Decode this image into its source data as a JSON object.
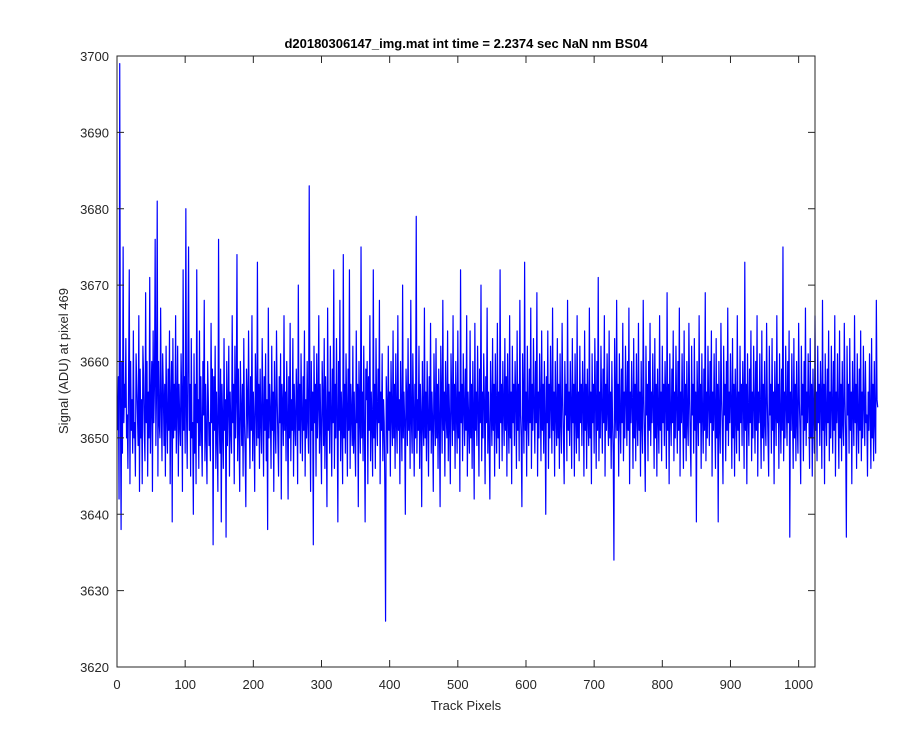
{
  "figure": {
    "title": "d20180306147_img.mat int time = 2.2374 sec  NaN nm BS04"
  },
  "chart_data": {
    "type": "line",
    "title": "d20180306147_img.mat int time = 2.2374 sec  NaN nm BS04",
    "xlabel": "Track Pixels",
    "ylabel": "Signal (ADU) at pixel 469",
    "xlim": [
      0,
      1024
    ],
    "ylim": [
      3620,
      3700
    ],
    "xticks": [
      0,
      100,
      200,
      300,
      400,
      500,
      600,
      700,
      800,
      900,
      1000
    ],
    "yticks": [
      3620,
      3630,
      3640,
      3650,
      3660,
      3670,
      3680,
      3690,
      3700
    ],
    "xtick_labels": [
      "0",
      "100",
      "200",
      "300",
      "400",
      "500",
      "600",
      "700",
      "800",
      "900",
      "1000"
    ],
    "ytick_labels": [
      "3620",
      "3630",
      "3640",
      "3650",
      "3660",
      "3670",
      "3680",
      "3690",
      "3700"
    ],
    "grid": false,
    "line_color": "#0000ff",
    "series": [
      {
        "x_start": 1,
        "x_step": 1,
        "y": [
          3651,
          3658,
          3642,
          3699,
          3655,
          3638,
          3660,
          3648,
          3675,
          3652,
          3657,
          3654,
          3663,
          3650,
          3653,
          3646,
          3658,
          3672,
          3644,
          3660,
          3651,
          3655,
          3648,
          3664,
          3650,
          3652,
          3645,
          3661,
          3657,
          3653,
          3649,
          3666,
          3643,
          3659,
          3650,
          3655,
          3644,
          3662,
          3658,
          3651,
          3647,
          3669,
          3652,
          3660,
          3645,
          3656,
          3650,
          3671,
          3648,
          3655,
          3660,
          3643,
          3664,
          3652,
          3657,
          3676,
          3649,
          3656,
          3681,
          3645,
          3660,
          3652,
          3650,
          3667,
          3654,
          3647,
          3661,
          3656,
          3649,
          3657,
          3645,
          3662,
          3653,
          3648,
          3659,
          3651,
          3664,
          3644,
          3655,
          3660,
          3639,
          3663,
          3650,
          3657,
          3651,
          3666,
          3648,
          3654,
          3662,
          3645,
          3657,
          3652,
          3649,
          3661,
          3655,
          3643,
          3672,
          3651,
          3658,
          3648,
          3680,
          3653,
          3646,
          3660,
          3675,
          3651,
          3657,
          3645,
          3663,
          3650,
          3652,
          3640,
          3661,
          3648,
          3657,
          3644,
          3672,
          3652,
          3655,
          3646,
          3664,
          3649,
          3658,
          3651,
          3645,
          3660,
          3653,
          3668,
          3647,
          3657,
          3650,
          3644,
          3660,
          3655,
          3649,
          3652,
          3647,
          3665,
          3652,
          3659,
          3636,
          3658,
          3651,
          3662,
          3646,
          3656,
          3650,
          3643,
          3676,
          3652,
          3648,
          3659,
          3639,
          3657,
          3652,
          3646,
          3663,
          3651,
          3655,
          3637,
          3660,
          3649,
          3654,
          3662,
          3645,
          3656,
          3651,
          3648,
          3666,
          3652,
          3657,
          3644,
          3662,
          3650,
          3655,
          3674,
          3647,
          3659,
          3651,
          3643,
          3660,
          3654,
          3649,
          3657,
          3645,
          3663,
          3652,
          3648,
          3641,
          3659,
          3655,
          3650,
          3664,
          3653,
          3646,
          3658,
          3651,
          3666,
          3647,
          3656,
          3652,
          3643,
          3661,
          3655,
          3649,
          3673,
          3650,
          3657,
          3646,
          3659,
          3652,
          3648,
          3663,
          3654,
          3645,
          3658,
          3651,
          3661,
          3647,
          3655,
          3638,
          3667,
          3650,
          3657,
          3653,
          3646,
          3662,
          3651,
          3656,
          3643,
          3660,
          3652,
          3648,
          3664,
          3655,
          3650,
          3645,
          3658,
          3652,
          3661,
          3642,
          3657,
          3654,
          3649,
          3666,
          3651,
          3656,
          3647,
          3660,
          3653,
          3642,
          3658,
          3650,
          3665,
          3647,
          3655,
          3651,
          3663,
          3645,
          3657,
          3652,
          3649,
          3659,
          3655,
          3644,
          3670,
          3651,
          3657,
          3648,
          3661,
          3653,
          3647,
          3658,
          3651,
          3664,
          3645,
          3655,
          3650,
          3660,
          3652,
          3648,
          3683,
          3654,
          3643,
          3660,
          3651,
          3656,
          3636,
          3662,
          3652,
          3657,
          3645,
          3661,
          3650,
          3654,
          3666,
          3648,
          3657,
          3651,
          3644,
          3660,
          3655,
          3649,
          3663,
          3646,
          3658,
          3652,
          3641,
          3667,
          3651,
          3656,
          3648,
          3662,
          3653,
          3645,
          3659,
          3652,
          3672,
          3646,
          3657,
          3650,
          3663,
          3653,
          3639,
          3660,
          3651,
          3668,
          3647,
          3656,
          3652,
          3644,
          3674,
          3650,
          3657,
          3648,
          3661,
          3654,
          3645,
          3659,
          3651,
          3672,
          3646,
          3657,
          3653,
          3649,
          3662,
          3648,
          3656,
          3650,
          3645,
          3664,
          3652,
          3657,
          3641,
          3660,
          3653,
          3648,
          3675,
          3650,
          3656,
          3647,
          3662,
          3651,
          3639,
          3659,
          3655,
          3660,
          3644,
          3658,
          3651,
          3666,
          3647,
          3656,
          3652,
          3645,
          3672,
          3650,
          3657,
          3646,
          3663,
          3653,
          3649,
          3659,
          3652,
          3668,
          3644,
          3656,
          3651,
          3661,
          3647,
          3655,
          3652,
          3643,
          3626,
          3658,
          3654,
          3648,
          3662,
          3651,
          3656,
          3645,
          3660,
          3653,
          3649,
          3664,
          3650,
          3657,
          3646,
          3661,
          3652,
          3648,
          3666,
          3651,
          3655,
          3644,
          3660,
          3653,
          3647,
          3670,
          3650,
          3656,
          3652,
          3640,
          3659,
          3655,
          3649,
          3663,
          3651,
          3657,
          3646,
          3668,
          3652,
          3648,
          3661,
          3654,
          3645,
          3657,
          3650,
          3679,
          3648,
          3655,
          3651,
          3662,
          3646,
          3657,
          3653,
          3641,
          3660,
          3652,
          3649,
          3667,
          3650,
          3656,
          3647,
          3660,
          3653,
          3645,
          3658,
          3651,
          3665,
          3648,
          3656,
          3652,
          3643,
          3661,
          3654,
          3649,
          3663,
          3650,
          3657,
          3646,
          3659,
          3652,
          3641,
          3662,
          3655,
          3648,
          3668,
          3651,
          3656,
          3645,
          3660,
          3653,
          3650,
          3664,
          3647,
          3657,
          3652,
          3644,
          3661,
          3655,
          3649,
          3666,
          3651,
          3657,
          3646,
          3660,
          3653,
          3648,
          3664,
          3650,
          3656,
          3643,
          3672,
          3652,
          3657,
          3647,
          3661,
          3654,
          3649,
          3659,
          3651,
          3666,
          3645,
          3656,
          3652,
          3648,
          3664,
          3650,
          3657,
          3646,
          3660,
          3653,
          3642,
          3665,
          3651,
          3656,
          3649,
          3662,
          3654,
          3645,
          3659,
          3652,
          3670,
          3647,
          3656,
          3650,
          3661,
          3655,
          3644,
          3658,
          3652,
          3667,
          3648,
          3656,
          3650,
          3642,
          3660,
          3654,
          3649,
          3663,
          3651,
          3657,
          3645,
          3661,
          3653,
          3648,
          3665,
          3650,
          3656,
          3646,
          3672,
          3652,
          3657,
          3647,
          3660,
          3654,
          3649,
          3663,
          3651,
          3658,
          3645,
          3661,
          3653,
          3648,
          3666,
          3650,
          3656,
          3644,
          3662,
          3652,
          3657,
          3649,
          3660,
          3655,
          3646,
          3664,
          3651,
          3657,
          3647,
          3668,
          3653,
          3650,
          3641,
          3661,
          3655,
          3648,
          3673,
          3651,
          3656,
          3645,
          3662,
          3653,
          3649,
          3659,
          3652,
          3667,
          3646,
          3657,
          3651,
          3663,
          3654,
          3648,
          3660,
          3652,
          3669,
          3645,
          3656,
          3650,
          3661,
          3655,
          3647,
          3664,
          3651,
          3657,
          3648,
          3660,
          3653,
          3640,
          3658,
          3652,
          3664,
          3646,
          3657,
          3650,
          3662,
          3654,
          3648,
          3667,
          3651,
          3656,
          3645,
          3660,
          3653,
          3649,
          3663,
          3650,
          3657,
          3646,
          3661,
          3652,
          3648,
          3665,
          3655,
          3650,
          3644,
          3660,
          3653,
          3657,
          3647,
          3668,
          3651,
          3656,
          3649,
          3660,
          3654,
          3646,
          3663,
          3652,
          3657,
          3645,
          3661,
          3653,
          3648,
          3666,
          3650,
          3656,
          3647,
          3662,
          3652,
          3657,
          3649,
          3660,
          3655,
          3645,
          3664,
          3651,
          3657,
          3646,
          3659,
          3653,
          3649,
          3667,
          3650,
          3656,
          3644,
          3661,
          3652,
          3657,
          3648,
          3663,
          3655,
          3646,
          3660,
          3651,
          3671,
          3647,
          3656,
          3650,
          3662,
          3654,
          3648,
          3659,
          3652,
          3666,
          3645,
          3657,
          3651,
          3661,
          3653,
          3649,
          3664,
          3650,
          3656,
          3646,
          3660,
          3652,
          3648,
          3634,
          3663,
          3654,
          3650,
          3668,
          3651,
          3657,
          3645,
          3661,
          3653,
          3648,
          3659,
          3652,
          3665,
          3647,
          3656,
          3650,
          3662,
          3655,
          3649,
          3660,
          3651,
          3667,
          3644,
          3656,
          3652,
          3660,
          3654,
          3646,
          3663,
          3650,
          3657,
          3647,
          3661,
          3653,
          3649,
          3665,
          3651,
          3656,
          3645,
          3660,
          3652,
          3648,
          3668,
          3655,
          3650,
          3643,
          3662,
          3653,
          3657,
          3647,
          3660,
          3651,
          3665,
          3649,
          3656,
          3652,
          3661,
          3654,
          3646,
          3663,
          3650,
          3657,
          3645,
          3659,
          3653,
          3648,
          3666,
          3651,
          3656,
          3647,
          3662,
          3652,
          3657,
          3649,
          3660,
          3655,
          3646,
          3669,
          3651,
          3657,
          3644,
          3661,
          3653,
          3649,
          3659,
          3652,
          3664,
          3647,
          3656,
          3650,
          3662,
          3654,
          3648,
          3660,
          3651,
          3667,
          3645,
          3656,
          3652,
          3661,
          3653,
          3646,
          3664,
          3650,
          3657,
          3647,
          3660,
          3652,
          3649,
          3665,
          3655,
          3650,
          3645,
          3662,
          3653,
          3657,
          3648,
          3663,
          3651,
          3656,
          3639,
          3660,
          3654,
          3649,
          3666,
          3652,
          3657,
          3646,
          3661,
          3653,
          3648,
          3659,
          3651,
          3669,
          3647,
          3656,
          3650,
          3662,
          3654,
          3649,
          3660,
          3652,
          3664,
          3645,
          3656,
          3651,
          3661,
          3653,
          3646,
          3663,
          3650,
          3657,
          3639,
          3660,
          3652,
          3648,
          3665,
          3655,
          3651,
          3644,
          3662,
          3653,
          3657,
          3647,
          3660,
          3651,
          3667,
          3649,
          3656,
          3652,
          3661,
          3654,
          3646,
          3663,
          3650,
          3657,
          3645,
          3659,
          3653,
          3648,
          3666,
          3651,
          3656,
          3647,
          3662,
          3652,
          3657,
          3649,
          3660,
          3655,
          3646,
          3673,
          3651,
          3657,
          3644,
          3661,
          3653,
          3649,
          3659,
          3652,
          3664,
          3647,
          3656,
          3650,
          3662,
          3654,
          3648,
          3660,
          3651,
          3666,
          3645,
          3656,
          3652,
          3661,
          3653,
          3646,
          3664,
          3650,
          3657,
          3647,
          3660,
          3652,
          3649,
          3665,
          3655,
          3650,
          3645,
          3662,
          3653,
          3657,
          3648,
          3663,
          3651,
          3656,
          3644,
          3660,
          3654,
          3649,
          3666,
          3652,
          3657,
          3646,
          3661,
          3653,
          3648,
          3659,
          3651,
          3675,
          3647,
          3656,
          3650,
          3662,
          3654,
          3649,
          3660,
          3652,
          3664,
          3637,
          3656,
          3651,
          3661,
          3653,
          3646,
          3663,
          3650,
          3657,
          3647,
          3660,
          3652,
          3648,
          3665,
          3655,
          3651,
          3644,
          3662,
          3653,
          3657,
          3647,
          3660,
          3651,
          3667,
          3649,
          3656,
          3652,
          3661,
          3654,
          3646,
          3663,
          3650,
          3657,
          3645,
          3659,
          3653,
          3648,
          3666,
          3651,
          3656,
          3647,
          3662,
          3652,
          3657,
          3649,
          3660,
          3655,
          3646,
          3668,
          3651,
          3657,
          3644,
          3661,
          3653,
          3649,
          3659,
          3652,
          3664,
          3647,
          3656,
          3650,
          3662,
          3654,
          3648,
          3660,
          3651,
          3666,
          3645,
          3656,
          3652,
          3661,
          3653,
          3646,
          3664,
          3650,
          3657,
          3647,
          3660,
          3652,
          3649,
          3665,
          3655,
          3650,
          3637,
          3662,
          3653,
          3657,
          3648,
          3663,
          3651,
          3656,
          3644,
          3660,
          3654,
          3649,
          3666,
          3652,
          3657,
          3646,
          3661,
          3653,
          3648,
          3659,
          3651,
          3664,
          3647,
          3656,
          3650,
          3662,
          3654,
          3649,
          3660,
          3652,
          3653,
          3645,
          3656,
          3651,
          3661,
          3653,
          3646,
          3663,
          3650,
          3657,
          3647,
          3660,
          3652,
          3648,
          3668,
          3655,
          3654
        ]
      }
    ]
  }
}
